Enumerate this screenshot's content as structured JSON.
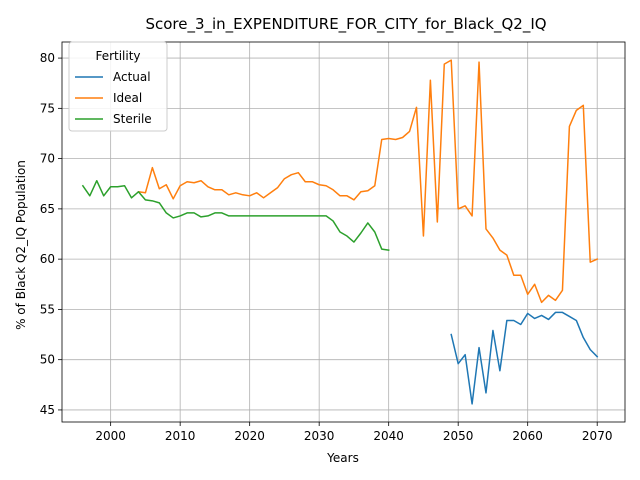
{
  "chart_data": {
    "type": "line",
    "title": "Score_3_in_EXPENDITURE_FOR_CITY_for_Black_Q2_IQ",
    "xlabel": "Years",
    "ylabel": "% of Black Q2_IQ Population",
    "xlim": [
      1993,
      2074
    ],
    "ylim": [
      43.8,
      81.6
    ],
    "xticks": [
      2000,
      2010,
      2020,
      2030,
      2040,
      2050,
      2060,
      2070
    ],
    "yticks": [
      45,
      50,
      55,
      60,
      65,
      70,
      75,
      80
    ],
    "grid": true,
    "legend": {
      "title": "Fertility",
      "placement": "top-left"
    },
    "series": [
      {
        "name": "Actual",
        "color": "#1f77b4",
        "x": [
          2049,
          2050,
          2051,
          2052,
          2053,
          2054,
          2055,
          2056,
          2057,
          2058,
          2059,
          2060,
          2061,
          2062,
          2063,
          2064,
          2065,
          2066,
          2067,
          2068,
          2069,
          2070
        ],
        "y": [
          52.5,
          49.6,
          50.5,
          45.6,
          51.2,
          46.7,
          52.9,
          48.9,
          53.9,
          53.9,
          53.5,
          54.6,
          54.1,
          54.4,
          54.0,
          54.7,
          54.7,
          54.3,
          53.9,
          52.2,
          51.0,
          50.3
        ]
      },
      {
        "name": "Ideal",
        "color": "#ff7f0e",
        "x": [
          2004,
          2005,
          2006,
          2007,
          2008,
          2009,
          2010,
          2011,
          2012,
          2013,
          2014,
          2015,
          2016,
          2017,
          2018,
          2019,
          2020,
          2021,
          2022,
          2023,
          2024,
          2025,
          2026,
          2027,
          2028,
          2029,
          2030,
          2031,
          2032,
          2033,
          2034,
          2035,
          2036,
          2037,
          2038,
          2039,
          2040,
          2041,
          2042,
          2043,
          2044,
          2045,
          2046,
          2047,
          2048,
          2049,
          2050,
          2051,
          2052,
          2053,
          2054,
          2055,
          2056,
          2057,
          2058,
          2059,
          2060,
          2061,
          2062,
          2063,
          2064,
          2065,
          2066,
          2067,
          2068,
          2069,
          2070
        ],
        "y": [
          66.7,
          66.6,
          69.1,
          67.0,
          67.4,
          66.0,
          67.3,
          67.7,
          67.6,
          67.8,
          67.2,
          66.9,
          66.9,
          66.4,
          66.6,
          66.4,
          66.3,
          66.6,
          66.1,
          66.6,
          67.1,
          68.0,
          68.4,
          68.6,
          67.7,
          67.7,
          67.4,
          67.3,
          66.9,
          66.3,
          66.3,
          65.9,
          66.7,
          66.8,
          67.3,
          71.9,
          72.0,
          71.9,
          72.1,
          72.7,
          75.1,
          62.3,
          77.8,
          63.7,
          79.4,
          79.8,
          65.0,
          65.3,
          64.3,
          79.6,
          63.0,
          62.1,
          60.9,
          60.4,
          58.4,
          58.4,
          56.5,
          57.5,
          55.7,
          56.4,
          55.9,
          56.9,
          73.2,
          74.8,
          75.3,
          59.7,
          60.0
        ]
      },
      {
        "name": "Sterile",
        "color": "#2ca02c",
        "x": [
          1996,
          1997,
          1998,
          1999,
          2000,
          2001,
          2002,
          2003,
          2004,
          2005,
          2006,
          2007,
          2008,
          2009,
          2010,
          2011,
          2012,
          2013,
          2014,
          2015,
          2016,
          2017,
          2018,
          2019,
          2020,
          2021,
          2022,
          2023,
          2024,
          2025,
          2026,
          2027,
          2028,
          2029,
          2030,
          2031,
          2032,
          2033,
          2034,
          2035,
          2036,
          2037,
          2038,
          2039,
          2040
        ],
        "y": [
          67.3,
          66.3,
          67.8,
          66.3,
          67.2,
          67.2,
          67.3,
          66.1,
          66.7,
          65.9,
          65.8,
          65.6,
          64.6,
          64.1,
          64.3,
          64.6,
          64.6,
          64.2,
          64.3,
          64.6,
          64.6,
          64.3,
          64.3,
          64.3,
          64.3,
          64.3,
          64.3,
          64.3,
          64.3,
          64.3,
          64.3,
          64.3,
          64.3,
          64.3,
          64.3,
          64.3,
          63.8,
          62.7,
          62.3,
          61.7,
          62.6,
          63.6,
          62.7,
          61.0,
          60.9
        ]
      }
    ]
  }
}
